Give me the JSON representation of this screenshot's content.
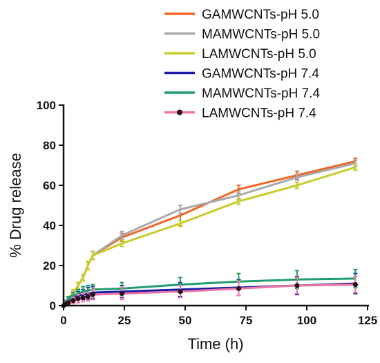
{
  "chart_data": {
    "type": "line",
    "title": "",
    "xlabel": "Time (h)",
    "ylabel": "% Drug release",
    "xlim": [
      0,
      125
    ],
    "ylim": [
      0,
      100
    ],
    "xticks": [
      0,
      25,
      50,
      75,
      100,
      125
    ],
    "yticks": [
      0,
      20,
      40,
      60,
      80,
      100
    ],
    "grid": false,
    "legend_position": "top-right",
    "x": [
      0,
      1,
      2,
      4,
      6,
      8,
      10,
      12,
      24,
      48,
      72,
      96,
      120
    ],
    "series": [
      {
        "name": "GAMWCNTs-pH 5.0",
        "color": "#f26522",
        "marker": "none",
        "values": [
          0,
          1.5,
          3,
          6,
          10,
          14,
          20,
          25,
          34,
          45,
          58,
          65,
          72
        ],
        "errors": [
          0,
          0.5,
          1,
          1,
          1.5,
          1.5,
          2,
          2,
          2,
          5,
          2,
          2,
          1.5
        ]
      },
      {
        "name": "MAMWCNTs-pH 5.0",
        "color": "#a7a9ac",
        "marker": "none",
        "values": [
          0,
          1.5,
          3,
          6,
          10,
          14,
          20,
          25,
          35,
          48,
          55,
          64,
          71
        ],
        "errors": [
          0,
          0.5,
          1,
          1,
          1.5,
          1.5,
          2,
          2,
          2,
          2,
          2,
          1.5,
          1.5
        ]
      },
      {
        "name": "LAMWCNTs-pH 5.0",
        "color": "#c6cc2a",
        "marker": "none",
        "values": [
          0,
          2,
          3.5,
          7,
          10,
          14,
          20,
          25,
          31,
          41,
          52,
          60,
          69
        ],
        "errors": [
          0,
          0.5,
          1,
          1,
          1.5,
          1.5,
          2,
          2,
          1.5,
          1.5,
          1.5,
          1.5,
          1.5
        ]
      },
      {
        "name": "GAMWCNTs-pH 7.4",
        "color": "#1a1aa6",
        "marker": "none",
        "values": [
          0,
          1,
          2,
          3.5,
          5,
          5.5,
          6,
          6.5,
          7,
          8,
          9,
          10,
          11
        ],
        "errors": [
          0,
          0.5,
          1,
          1.5,
          2,
          2.5,
          3,
          3,
          3,
          3.5,
          4,
          4.5,
          5
        ]
      },
      {
        "name": "MAMWCNTs-pH 7.4",
        "color": "#1e9e6e",
        "marker": "none",
        "values": [
          0,
          2,
          3.5,
          5,
          6,
          7,
          7.5,
          8,
          8.5,
          10.5,
          12,
          13,
          13.5
        ],
        "errors": [
          0,
          0.5,
          1,
          1.5,
          2,
          2.5,
          2.5,
          2.5,
          3,
          3.5,
          4,
          4.5,
          4.5
        ]
      },
      {
        "name": "LAMWCNTs-pH 7.4",
        "color": "#ec77a6",
        "marker": "circle",
        "values": [
          0,
          0.7,
          1.5,
          2.5,
          3.5,
          4,
          4.5,
          5.5,
          6,
          7,
          8.5,
          10,
          10.5
        ],
        "errors": [
          0,
          0.5,
          1,
          1.5,
          2,
          2,
          2,
          2.5,
          3,
          3,
          3.5,
          4,
          4
        ]
      }
    ]
  }
}
